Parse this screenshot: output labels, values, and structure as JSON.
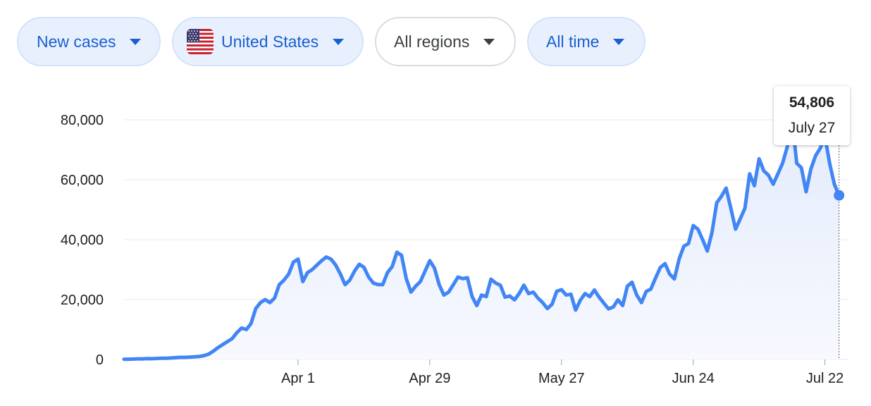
{
  "filters": {
    "metric": {
      "label": "New cases"
    },
    "country": {
      "label": "United States",
      "flag_icon": "us-flag-icon"
    },
    "region": {
      "label": "All regions"
    },
    "time": {
      "label": "All time"
    }
  },
  "colors": {
    "line": "#4285f4",
    "area_top": "#e3ebfc",
    "area_bottom": "#f7f9fe",
    "grid": "#e8eaed",
    "chip_active_bg": "#e8f0fe",
    "chip_active_text": "#1a5fd0"
  },
  "tooltip": {
    "value": "54,806",
    "date": "July 27"
  },
  "chart_data": {
    "type": "area",
    "title": "",
    "xlabel": "",
    "ylabel": "",
    "ylim": [
      0,
      80000
    ],
    "yticks": [
      0,
      20000,
      40000,
      60000,
      80000
    ],
    "ytick_labels": [
      "0",
      "20,000",
      "40,000",
      "60,000",
      "80,000"
    ],
    "x_start_date": "2020-02-24",
    "x_end_date": "2020-07-27",
    "xtick_labels": [
      {
        "date": "2020-04-01",
        "label": "Apr 1"
      },
      {
        "date": "2020-04-29",
        "label": "Apr 29"
      },
      {
        "date": "2020-05-27",
        "label": "May 27"
      },
      {
        "date": "2020-06-24",
        "label": "Jun 24"
      },
      {
        "date": "2020-07-22",
        "label": "Jul 22"
      }
    ],
    "grid": true,
    "series": [
      {
        "values": [
          100,
          100,
          150,
          200,
          200,
          300,
          250,
          350,
          400,
          400,
          500,
          600,
          700,
          700,
          800,
          900,
          1000,
          1300,
          1800,
          2800,
          4000,
          5000,
          6000,
          7000,
          9000,
          10500,
          10000,
          12000,
          17000,
          19000,
          20000,
          19000,
          20500,
          25000,
          26500,
          28500,
          32500,
          33500,
          26000,
          29000,
          30000,
          31500,
          33000,
          34200,
          33500,
          31500,
          28500,
          25000,
          26500,
          29500,
          31800,
          30800,
          27500,
          25500,
          25000,
          25000,
          29000,
          31000,
          35800,
          34800,
          27000,
          22500,
          24500,
          26000,
          29500,
          33000,
          30500,
          25000,
          21500,
          22500,
          25000,
          27500,
          27000,
          27300,
          21000,
          18000,
          21500,
          21000,
          26800,
          25500,
          24800,
          20800,
          21200,
          19900,
          22000,
          24800,
          22000,
          22500,
          20500,
          19000,
          17000,
          18500,
          22800,
          23300,
          21500,
          21800,
          16500,
          19800,
          22000,
          21000,
          23200,
          20800,
          18800,
          16900,
          17500,
          19900,
          18000,
          24500,
          25800,
          21500,
          19000,
          22700,
          23500,
          27200,
          30700,
          32000,
          28500,
          26900,
          33500,
          37800,
          38700,
          44700,
          43500,
          40000,
          36200,
          42500,
          52300,
          54500,
          57200,
          50500,
          43500,
          47000,
          50500,
          62000,
          58000,
          67000,
          63000,
          61500,
          58500,
          62000,
          65500,
          71000,
          80500,
          65500,
          64000,
          56000,
          63500,
          68000,
          70500,
          74500,
          65500,
          58500,
          54806
        ]
      }
    ]
  }
}
